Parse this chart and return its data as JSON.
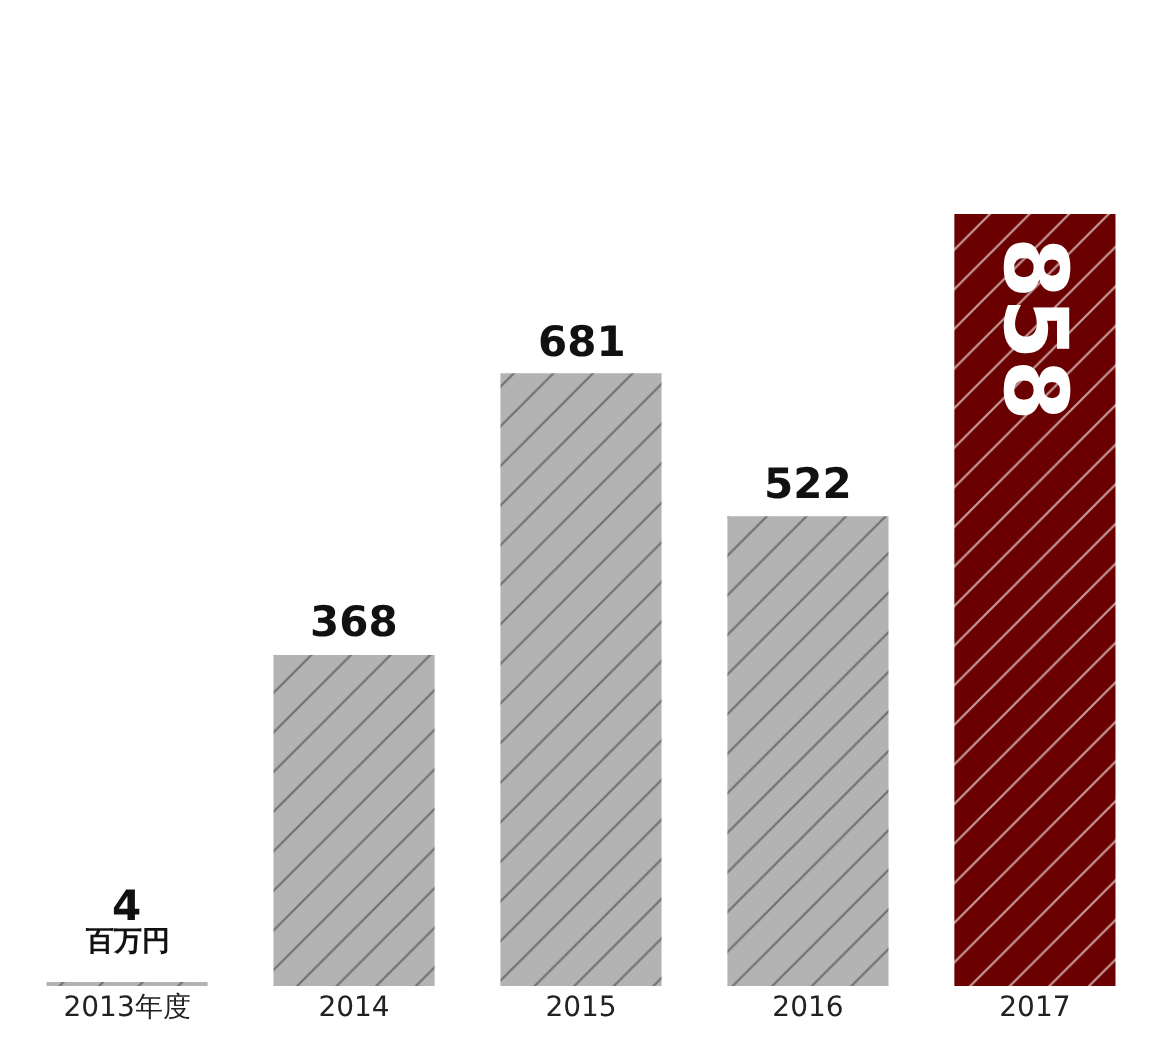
{
  "chart_data": {
    "type": "bar",
    "categories": [
      "2013年度",
      "2014",
      "2015",
      "2016",
      "2017"
    ],
    "values": [
      4,
      368,
      681,
      522,
      858
    ],
    "colors": [
      "#b3b3b3",
      "#b3b3b3",
      "#b3b3b3",
      "#b3b3b3",
      "#6b0000"
    ],
    "data_labels": true,
    "annotations": [
      "百万円"
    ],
    "grid": false,
    "legend": false
  }
}
